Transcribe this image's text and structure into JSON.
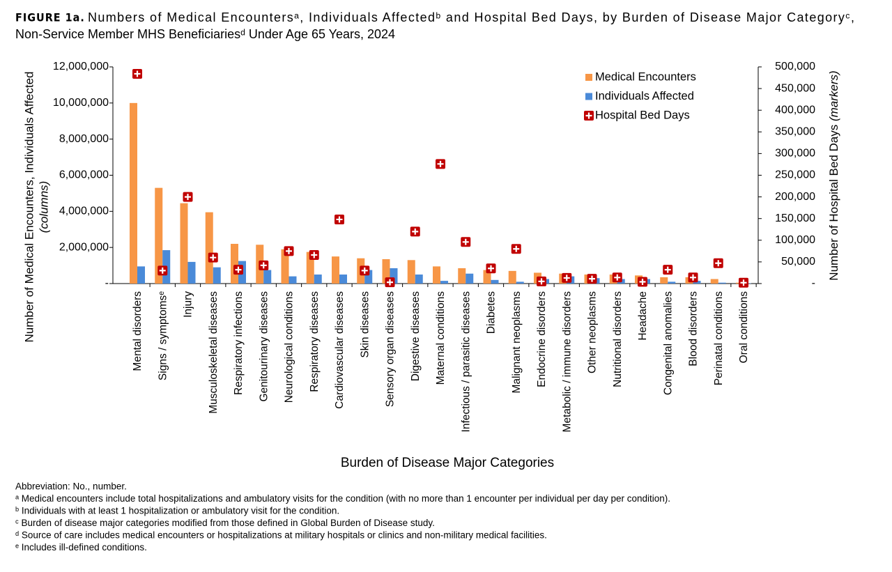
{
  "chart_data": {
    "type": "bar",
    "figure_label": "FIGURE 1a.",
    "title": [
      "Numbers of Medical Encountersᵃ, Individuals Affectedᵇ and Hospital Bed Days, by Burden of Disease Major Categoryᶜ,",
      "Non-Service Member MHS Beneficiariesᵈ Under Age 65 Years, 2024"
    ],
    "y_label": [
      "Number of Medical Encounters, Individuals Affected",
      "(columns)"
    ],
    "y2_label": [
      "Number of Hospital Bed Days",
      "(markers)"
    ],
    "x_label": "Burden of Disease Major Categories",
    "categories": [
      "Mental disorders",
      "Signs / symptomsᵉ",
      "Injury",
      "Musculoskeletal diseases",
      "Respiratory infections",
      "Genitourinary diseases",
      "Neurological conditions",
      "Respiratory diseases",
      "Cardiovascular diseases",
      "Skin diseases",
      "Sensory organ diseases",
      "Digestive diseases",
      "Maternal conditions",
      "Infectious / parasitic diseases",
      "Diabetes",
      "Malignant neoplasms",
      "Endocrine disorders",
      "Metabolic / immune disorders",
      "Other neoplasms",
      "Nutritional disorders",
      "Headache",
      "Congenital anomalies",
      "Blood disorders",
      "Perinatal conditions",
      "Oral conditions"
    ],
    "series": [
      {
        "name": "Medical Encounters",
        "color": "#f79646",
        "values": [
          10000000,
          5300000,
          4450000,
          3950000,
          2200000,
          2150000,
          1900000,
          1750000,
          1500000,
          1400000,
          1350000,
          1300000,
          950000,
          850000,
          750000,
          700000,
          600000,
          550000,
          500000,
          500000,
          450000,
          350000,
          350000,
          250000,
          50000
        ]
      },
      {
        "name": "Individuals Affected",
        "color": "#4a8ad8",
        "values": [
          950000,
          1850000,
          1200000,
          900000,
          1250000,
          750000,
          400000,
          500000,
          500000,
          750000,
          850000,
          500000,
          150000,
          550000,
          200000,
          100000,
          250000,
          400000,
          300000,
          250000,
          250000,
          100000,
          150000,
          50000,
          20000
        ]
      },
      {
        "name": "Hospital Bed Days",
        "color": "#c00000",
        "axis": "y2",
        "marker": "square-cross",
        "values": [
          484000,
          30000,
          200000,
          60000,
          32000,
          42000,
          75000,
          66000,
          148000,
          30000,
          3000,
          120000,
          276000,
          96000,
          35000,
          80000,
          5000,
          13000,
          11000,
          14000,
          4000,
          32000,
          14000,
          47000,
          2000
        ]
      }
    ],
    "ylim": [
      0,
      12000000
    ],
    "yticks": [
      {
        "value": 0,
        "label": "-"
      },
      {
        "value": 2000000,
        "label": "2,000,000"
      },
      {
        "value": 4000000,
        "label": "4,000,000"
      },
      {
        "value": 6000000,
        "label": "6,000,000"
      },
      {
        "value": 8000000,
        "label": "8,000,000"
      },
      {
        "value": 10000000,
        "label": "10,000,000"
      },
      {
        "value": 12000000,
        "label": "12,000,000"
      }
    ],
    "y2lim": [
      0,
      500000
    ],
    "y2ticks": [
      {
        "value": 0,
        "label": "-"
      },
      {
        "value": 50000,
        "label": "50,000"
      },
      {
        "value": 100000,
        "label": "100,000"
      },
      {
        "value": 150000,
        "label": "150,000"
      },
      {
        "value": 200000,
        "label": "200,000"
      },
      {
        "value": 250000,
        "label": "250,000"
      },
      {
        "value": 300000,
        "label": "300,000"
      },
      {
        "value": 350000,
        "label": "350,000"
      },
      {
        "value": 400000,
        "label": "400,000"
      },
      {
        "value": 450000,
        "label": "450,000"
      },
      {
        "value": 500000,
        "label": "500,000"
      }
    ],
    "grid": false,
    "legend": "top-right",
    "footnotes": [
      "Abbreviation: No., number.",
      "ᵃ Medical encounters include total hospitalizations and ambulatory visits for the condition (with no more than 1 encounter per individual per day per condition).",
      "ᵇ Individuals with at least 1 hospitalization or ambulatory visit for the condition.",
      "ᶜ Burden of disease major categories modified from those defined in Global Burden of Disease study.",
      "ᵈ Source of care includes medical encounters or hospitalizations at military hospitals or clinics and non-military medical facilities.",
      "ᵉ Includes ill-defined conditions."
    ]
  }
}
